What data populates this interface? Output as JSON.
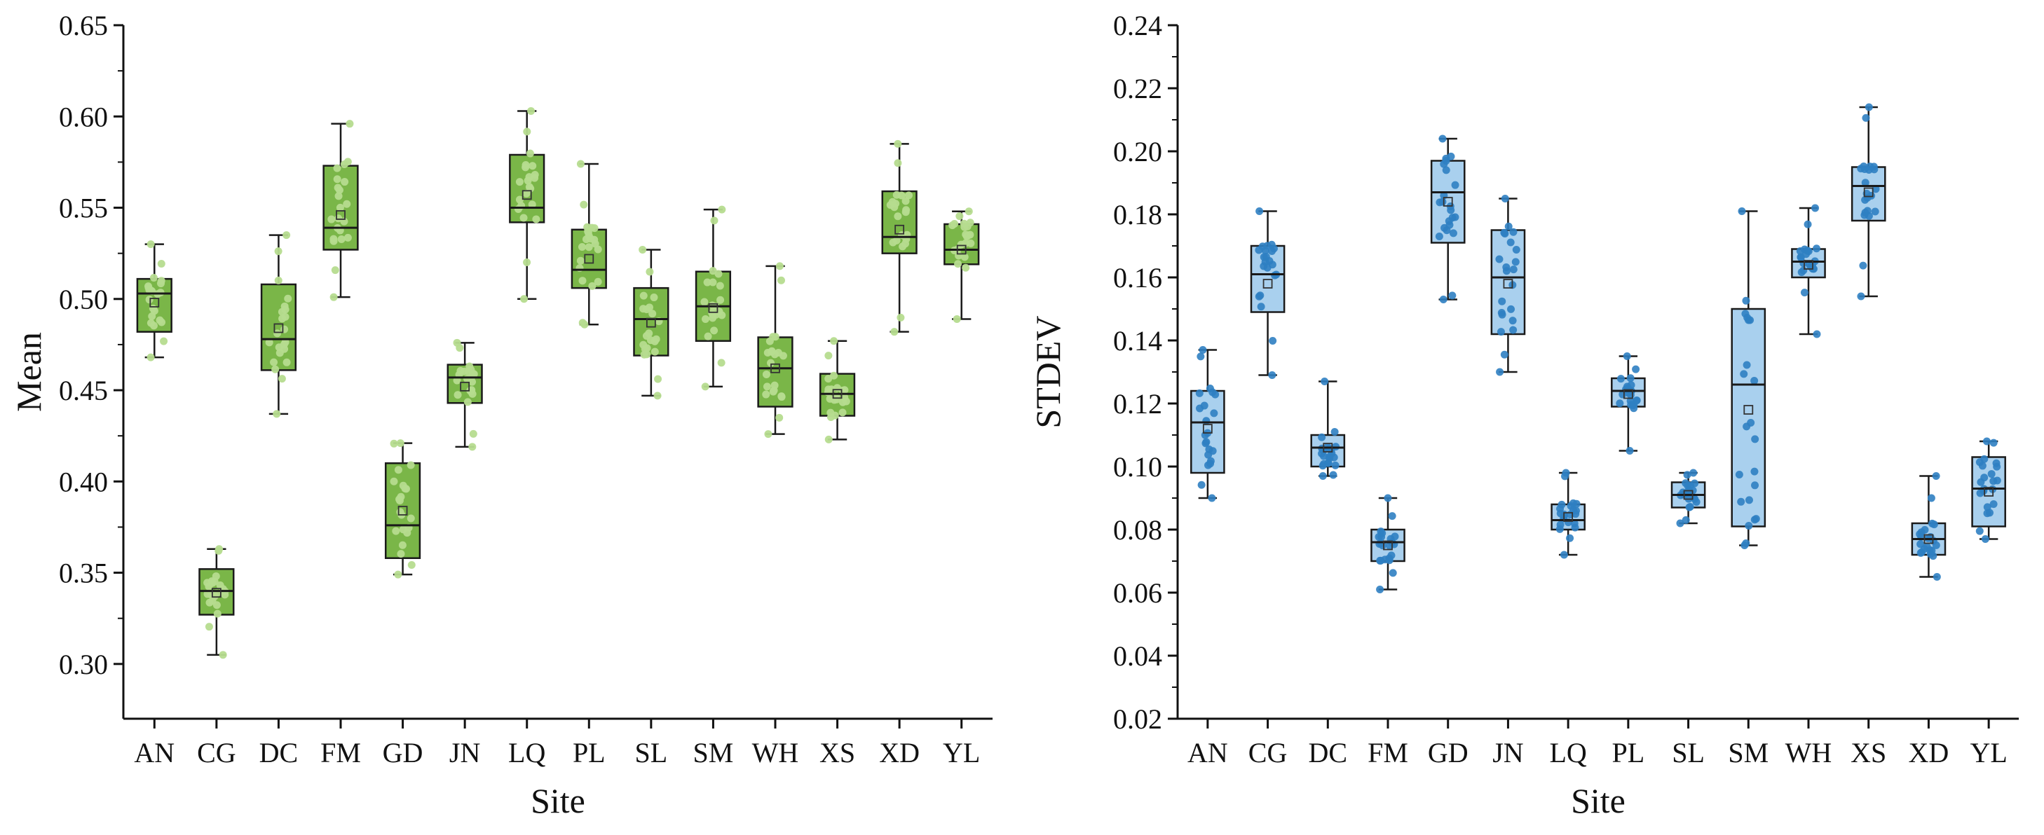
{
  "chart_data": [
    {
      "type": "box",
      "xlabel": "Site",
      "ylabel": "Mean",
      "ylim": [
        0.27,
        0.65
      ],
      "yticks": [
        0.3,
        0.35,
        0.4,
        0.45,
        0.5,
        0.55,
        0.6,
        0.65
      ],
      "ytick_labels": [
        "0.30",
        "0.35",
        "0.40",
        "0.45",
        "0.50",
        "0.55",
        "0.60",
        "0.65"
      ],
      "categories": [
        "AN",
        "CG",
        "DC",
        "FM",
        "GD",
        "JN",
        "LQ",
        "PL",
        "SL",
        "SM",
        "WH",
        "XS",
        "XD",
        "YL"
      ],
      "colors": {
        "box": "#7ab648",
        "point": "#b6dc8f",
        "line": "#1a1a1a"
      },
      "boxes": [
        {
          "min": 0.468,
          "q1": 0.482,
          "median": 0.503,
          "q3": 0.511,
          "max": 0.53,
          "mean": 0.498
        },
        {
          "min": 0.305,
          "q1": 0.327,
          "median": 0.34,
          "q3": 0.352,
          "max": 0.363,
          "mean": 0.339
        },
        {
          "min": 0.437,
          "q1": 0.461,
          "median": 0.478,
          "q3": 0.508,
          "max": 0.535,
          "mean": 0.484
        },
        {
          "min": 0.501,
          "q1": 0.527,
          "median": 0.539,
          "q3": 0.573,
          "max": 0.596,
          "mean": 0.546
        },
        {
          "min": 0.349,
          "q1": 0.358,
          "median": 0.376,
          "q3": 0.41,
          "max": 0.421,
          "mean": 0.384
        },
        {
          "min": 0.419,
          "q1": 0.443,
          "median": 0.457,
          "q3": 0.464,
          "max": 0.476,
          "mean": 0.452
        },
        {
          "min": 0.5,
          "q1": 0.542,
          "median": 0.55,
          "q3": 0.579,
          "max": 0.603,
          "mean": 0.557
        },
        {
          "min": 0.486,
          "q1": 0.506,
          "median": 0.516,
          "q3": 0.538,
          "max": 0.574,
          "mean": 0.522
        },
        {
          "min": 0.447,
          "q1": 0.469,
          "median": 0.489,
          "q3": 0.506,
          "max": 0.527,
          "mean": 0.487
        },
        {
          "min": 0.452,
          "q1": 0.477,
          "median": 0.496,
          "q3": 0.515,
          "max": 0.549,
          "mean": 0.495
        },
        {
          "min": 0.426,
          "q1": 0.441,
          "median": 0.462,
          "q3": 0.479,
          "max": 0.518,
          "mean": 0.462
        },
        {
          "min": 0.423,
          "q1": 0.436,
          "median": 0.448,
          "q3": 0.459,
          "max": 0.477,
          "mean": 0.448
        },
        {
          "min": 0.482,
          "q1": 0.525,
          "median": 0.534,
          "q3": 0.559,
          "max": 0.585,
          "mean": 0.538
        },
        {
          "min": 0.489,
          "q1": 0.519,
          "median": 0.527,
          "q3": 0.541,
          "max": 0.548,
          "mean": 0.527
        }
      ]
    },
    {
      "type": "box",
      "xlabel": "Site",
      "ylabel": "STDEV",
      "ylim": [
        0.02,
        0.24
      ],
      "yticks": [
        0.02,
        0.04,
        0.06,
        0.08,
        0.1,
        0.12,
        0.14,
        0.16,
        0.18,
        0.2,
        0.22,
        0.24
      ],
      "ytick_labels": [
        "0.02",
        "0.04",
        "0.06",
        "0.08",
        "0.10",
        "0.12",
        "0.14",
        "0.16",
        "0.18",
        "0.20",
        "0.22",
        "0.24"
      ],
      "categories": [
        "AN",
        "CG",
        "DC",
        "FM",
        "GD",
        "JN",
        "LQ",
        "PL",
        "SL",
        "SM",
        "WH",
        "XS",
        "XD",
        "YL"
      ],
      "colors": {
        "box": "#a9d0ee",
        "point": "#2f7fc2",
        "line": "#1a1a1a"
      },
      "boxes": [
        {
          "min": 0.09,
          "q1": 0.098,
          "median": 0.114,
          "q3": 0.124,
          "max": 0.137,
          "mean": 0.112
        },
        {
          "min": 0.129,
          "q1": 0.149,
          "median": 0.161,
          "q3": 0.17,
          "max": 0.181,
          "mean": 0.158
        },
        {
          "min": 0.097,
          "q1": 0.1,
          "median": 0.106,
          "q3": 0.11,
          "max": 0.127,
          "mean": 0.106
        },
        {
          "min": 0.061,
          "q1": 0.07,
          "median": 0.076,
          "q3": 0.08,
          "max": 0.09,
          "mean": 0.075
        },
        {
          "min": 0.153,
          "q1": 0.171,
          "median": 0.187,
          "q3": 0.197,
          "max": 0.204,
          "mean": 0.184
        },
        {
          "min": 0.13,
          "q1": 0.142,
          "median": 0.16,
          "q3": 0.175,
          "max": 0.185,
          "mean": 0.158
        },
        {
          "min": 0.072,
          "q1": 0.08,
          "median": 0.083,
          "q3": 0.088,
          "max": 0.098,
          "mean": 0.084
        },
        {
          "min": 0.105,
          "q1": 0.119,
          "median": 0.124,
          "q3": 0.128,
          "max": 0.135,
          "mean": 0.123
        },
        {
          "min": 0.082,
          "q1": 0.087,
          "median": 0.091,
          "q3": 0.095,
          "max": 0.098,
          "mean": 0.091
        },
        {
          "min": 0.075,
          "q1": 0.081,
          "median": 0.126,
          "q3": 0.15,
          "max": 0.181,
          "mean": 0.118
        },
        {
          "min": 0.142,
          "q1": 0.16,
          "median": 0.165,
          "q3": 0.169,
          "max": 0.182,
          "mean": 0.164
        },
        {
          "min": 0.154,
          "q1": 0.178,
          "median": 0.189,
          "q3": 0.195,
          "max": 0.214,
          "mean": 0.187
        },
        {
          "min": 0.065,
          "q1": 0.072,
          "median": 0.077,
          "q3": 0.082,
          "max": 0.097,
          "mean": 0.077
        },
        {
          "min": 0.077,
          "q1": 0.081,
          "median": 0.093,
          "q3": 0.103,
          "max": 0.108,
          "mean": 0.092
        }
      ]
    }
  ]
}
